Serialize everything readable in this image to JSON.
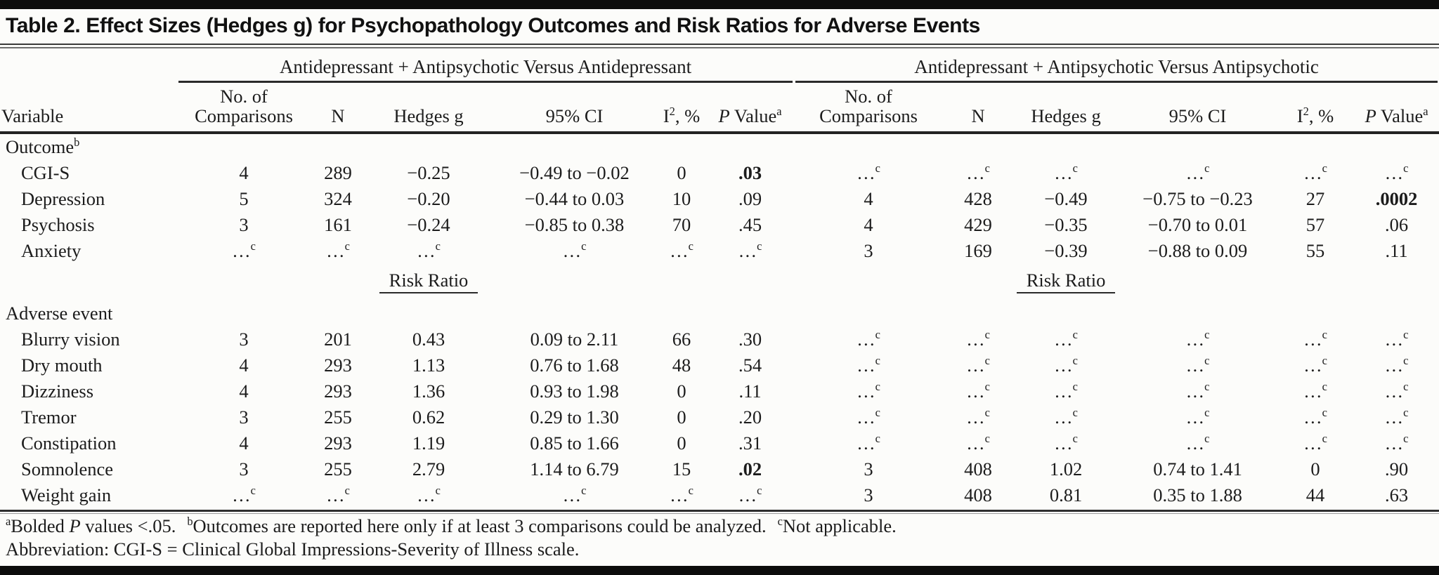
{
  "title": "Table 2. Effect Sizes (Hedges g) for Psychopathology Outcomes and Risk Ratios for Adverse Events",
  "table": {
    "spanners": [
      "Antidepressant + Antipsychotic Versus Antidepressant",
      "Antidepressant + Antipsychotic Versus Antipsychotic"
    ],
    "headers": {
      "variable": "Variable",
      "no_of": "No. of",
      "comparisons": "Comparisons",
      "n": "N",
      "hedges_g": "Hedges g",
      "ci": "95% CI",
      "i2_base": "I",
      "i2_sup": "2",
      "i2_rest": ", %",
      "p_italic": "P",
      "p_rest": " Value",
      "p_sup": "a"
    },
    "na_symbol": "…",
    "na_sup": "c",
    "risk_ratio_label": "Risk Ratio",
    "rows": [
      {
        "type": "section",
        "label": "Outcome",
        "sup": "b"
      },
      {
        "type": "data",
        "label": "CGI-S",
        "cells": [
          "4",
          "289",
          "−0.25",
          "−0.49 to −0.02",
          "0",
          {
            "t": ".03",
            "b": true
          },
          null,
          null,
          null,
          null,
          null,
          null
        ]
      },
      {
        "type": "data",
        "label": "Depression",
        "cells": [
          "5",
          "324",
          "−0.20",
          "−0.44 to 0.03",
          "10",
          ".09",
          "4",
          "428",
          "−0.49",
          "−0.75 to −0.23",
          "27",
          {
            "t": ".0002",
            "b": true
          }
        ]
      },
      {
        "type": "data",
        "label": "Psychosis",
        "cells": [
          "3",
          "161",
          "−0.24",
          "−0.85 to 0.38",
          "70",
          ".45",
          "4",
          "429",
          "−0.35",
          "−0.70 to 0.01",
          "57",
          ".06"
        ]
      },
      {
        "type": "data",
        "label": "Anxiety",
        "cells": [
          null,
          null,
          null,
          null,
          null,
          null,
          "3",
          "169",
          "−0.39",
          "−0.88 to 0.09",
          "55",
          ".11"
        ]
      },
      {
        "type": "riskratio"
      },
      {
        "type": "section",
        "label": "Adverse event",
        "sup": ""
      },
      {
        "type": "data",
        "label": "Blurry vision",
        "cells": [
          "3",
          "201",
          "0.43",
          "0.09 to 2.11",
          "66",
          ".30",
          null,
          null,
          null,
          null,
          null,
          null
        ]
      },
      {
        "type": "data",
        "label": "Dry mouth",
        "cells": [
          "4",
          "293",
          "1.13",
          "0.76 to 1.68",
          "48",
          ".54",
          null,
          null,
          null,
          null,
          null,
          null
        ]
      },
      {
        "type": "data",
        "label": "Dizziness",
        "cells": [
          "4",
          "293",
          "1.36",
          "0.93 to 1.98",
          "0",
          ".11",
          null,
          null,
          null,
          null,
          null,
          null
        ]
      },
      {
        "type": "data",
        "label": "Tremor",
        "cells": [
          "3",
          "255",
          "0.62",
          "0.29 to 1.30",
          "0",
          ".20",
          null,
          null,
          null,
          null,
          null,
          null
        ]
      },
      {
        "type": "data",
        "label": "Constipation",
        "cells": [
          "4",
          "293",
          "1.19",
          "0.85 to 1.66",
          "0",
          ".31",
          null,
          null,
          null,
          null,
          null,
          null
        ]
      },
      {
        "type": "data",
        "label": "Somnolence",
        "cells": [
          "3",
          "255",
          "2.79",
          "1.14 to 6.79",
          "15",
          {
            "t": ".02",
            "b": true
          },
          "3",
          "408",
          "1.02",
          "0.74 to 1.41",
          "0",
          ".90"
        ]
      },
      {
        "type": "data",
        "label": "Weight gain",
        "cells": [
          null,
          null,
          null,
          null,
          null,
          null,
          "3",
          "408",
          "0.81",
          "0.35 to 1.88",
          "44",
          ".63"
        ]
      }
    ]
  },
  "footnotes": {
    "a_sup": "a",
    "a_pre": "Bolded ",
    "a_italic": "P",
    "a_post": " values <.05.",
    "b_sup": "b",
    "b_text": "Outcomes are reported here only if at least 3 comparisons could be analyzed.",
    "c_sup": "c",
    "c_text": "Not applicable.",
    "abbreviation": "Abbreviation: CGI-S = Clinical Global Impressions-Severity of Illness scale."
  }
}
